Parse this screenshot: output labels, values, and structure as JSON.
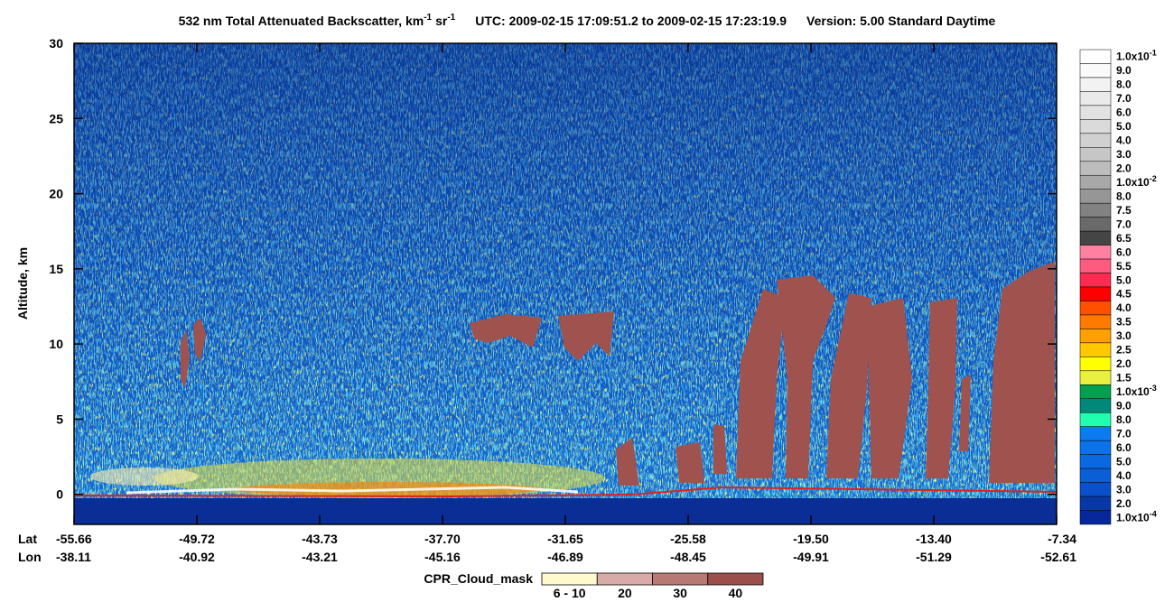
{
  "chart_data": {
    "type": "heatmap",
    "title": {
      "main": "532 nm Total Attenuated Backscatter, km",
      "sup1": "-1",
      "unit2": "sr",
      "sup2": "-1",
      "time_range": "UTC:  2009-02-15 17:09:51.2  to  2009-02-15 17:23:19.9",
      "version": "Version: 5.00  Standard  Daytime"
    },
    "y_label": "Altitude, km",
    "ylim": [
      -2,
      30
    ],
    "yticks": [
      0,
      5,
      10,
      15,
      20,
      25,
      30
    ],
    "x_row_labels": [
      "Lat",
      "Lon"
    ],
    "lat": [
      "-55.66",
      "-49.72",
      "-43.73",
      "-37.70",
      "-31.65",
      "-25.58",
      "-19.50",
      "-13.40",
      "-7.34"
    ],
    "lon": [
      "-38.11",
      "-40.92",
      "-43.21",
      "-45.16",
      "-46.89",
      "-48.45",
      "-49.91",
      "-51.29",
      "-52.61"
    ],
    "colorbar": [
      {
        "label": "1.0x10",
        "sup": "-1",
        "color": "#ffffff"
      },
      {
        "label": "9.0",
        "color": "#fafafa"
      },
      {
        "label": "8.0",
        "color": "#f2f2f2"
      },
      {
        "label": "7.0",
        "color": "#eaeaea"
      },
      {
        "label": "6.0",
        "color": "#e2e2e2"
      },
      {
        "label": "5.0",
        "color": "#dadada"
      },
      {
        "label": "4.0",
        "color": "#d0d0d0"
      },
      {
        "label": "3.0",
        "color": "#c6c6c6"
      },
      {
        "label": "2.0",
        "color": "#bcbcbc"
      },
      {
        "label": "1.0x10",
        "sup": "-2",
        "color": "#a8a8a8"
      },
      {
        "label": "8.0",
        "color": "#969696"
      },
      {
        "label": "7.5",
        "color": "#828282"
      },
      {
        "label": "7.0",
        "color": "#6a6a6a"
      },
      {
        "label": "6.5",
        "color": "#454545"
      },
      {
        "label": "6.0",
        "color": "#ff80a0"
      },
      {
        "label": "5.5",
        "color": "#ff5a80"
      },
      {
        "label": "5.0",
        "color": "#ff2a50"
      },
      {
        "label": "4.5",
        "color": "#ff0000"
      },
      {
        "label": "4.0",
        "color": "#ff5000"
      },
      {
        "label": "3.5",
        "color": "#ff7a00"
      },
      {
        "label": "3.0",
        "color": "#ffa000"
      },
      {
        "label": "2.5",
        "color": "#ffc800"
      },
      {
        "label": "2.0",
        "color": "#ffff00"
      },
      {
        "label": "1.5",
        "color": "#e8f040"
      },
      {
        "label": "1.0x10",
        "sup": "-3",
        "color": "#00a050"
      },
      {
        "label": "9.0",
        "color": "#008878"
      },
      {
        "label": "8.0",
        "color": "#20ffb0"
      },
      {
        "label": "7.0",
        "color": "#0a7cf0"
      },
      {
        "label": "6.0",
        "color": "#0a72ea"
      },
      {
        "label": "5.0",
        "color": "#0a68e0"
      },
      {
        "label": "4.0",
        "color": "#0a5ed6"
      },
      {
        "label": "3.0",
        "color": "#0a50c8"
      },
      {
        "label": "2.0",
        "color": "#0838a8"
      },
      {
        "label": "1.0x10",
        "sup": "-4",
        "color": "#06289a"
      }
    ],
    "cpr_legend": {
      "title": "CPR_Cloud_mask",
      "items": [
        {
          "label": "6 - 10",
          "color": "#fffacd"
        },
        {
          "label": "20",
          "color": "#d8aaa8"
        },
        {
          "label": "30",
          "color": "#b87874"
        },
        {
          "label": "40",
          "color": "#9c4e4a"
        }
      ]
    }
  }
}
